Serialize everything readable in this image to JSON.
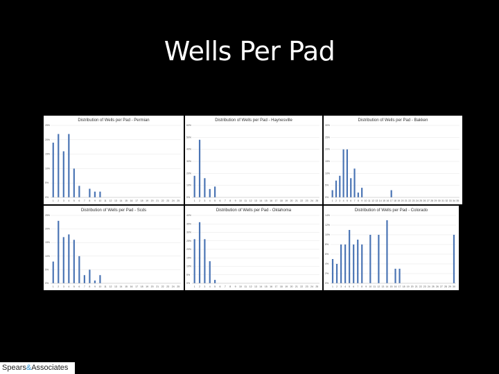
{
  "page": {
    "title": "Wells Per Pad"
  },
  "logo": {
    "part1": "Spears",
    "amp": "&",
    "part2": "Associates"
  },
  "chart_data": [
    {
      "type": "bar",
      "title": "Distribution of Wells per Pad - Permian",
      "categories": [
        "1",
        "2",
        "3",
        "4",
        "5",
        "6",
        "7",
        "8",
        "9",
        "10",
        "11",
        "12",
        "13",
        "14",
        "15",
        "16",
        "17",
        "18",
        "19",
        "20",
        "21",
        "22",
        "23",
        "24",
        "25"
      ],
      "values": [
        19,
        22,
        16,
        22,
        10,
        4,
        0,
        3,
        2,
        2,
        0,
        0,
        0,
        0,
        0,
        0,
        0,
        0,
        0,
        0,
        0,
        0,
        0,
        0,
        0
      ],
      "yticks": [
        "0%",
        "5%",
        "10%",
        "15%",
        "20%",
        "25%"
      ],
      "ylim": [
        0,
        25
      ]
    },
    {
      "type": "bar",
      "title": "Distribution of Wells per Pad - Haynesville",
      "categories": [
        "1",
        "2",
        "3",
        "4",
        "5",
        "6",
        "7",
        "8",
        "9",
        "10",
        "11",
        "12",
        "13",
        "14",
        "15",
        "16",
        "17",
        "18",
        "19",
        "20",
        "21",
        "22",
        "23",
        "24",
        "25"
      ],
      "values": [
        18,
        48,
        16,
        7,
        9,
        0,
        0,
        0,
        0,
        0,
        0,
        0,
        0,
        0,
        0,
        0,
        0,
        0,
        0,
        0,
        0,
        0,
        0,
        0,
        0
      ],
      "yticks": [
        "0%",
        "10%",
        "20%",
        "30%",
        "40%",
        "50%",
        "60%"
      ],
      "ylim": [
        0,
        60
      ]
    },
    {
      "type": "bar",
      "title": "Distribution of Wells per Pad - Bakken",
      "categories": [
        "1",
        "2",
        "3",
        "4",
        "5",
        "6",
        "7",
        "8",
        "9",
        "10",
        "11",
        "12",
        "13",
        "14",
        "15",
        "16",
        "17",
        "18",
        "19",
        "20",
        "21",
        "22",
        "23",
        "24",
        "25",
        "26",
        "27",
        "28",
        "29",
        "30",
        "31",
        "32",
        "33",
        "34",
        "35"
      ],
      "values": [
        3,
        7,
        9,
        20,
        20,
        8,
        12,
        2,
        4,
        0,
        0,
        0,
        0,
        0,
        0,
        0,
        3,
        0,
        0,
        0,
        0,
        0,
        0,
        0,
        0,
        0,
        0,
        0,
        0,
        0,
        0,
        0,
        0,
        0,
        0
      ],
      "yticks": [
        "0%",
        "5%",
        "10%",
        "15%",
        "20%",
        "25%",
        "30%"
      ],
      "ylim": [
        0,
        30
      ]
    },
    {
      "type": "bar",
      "title": "Distribution of Wells per Pad - Scds",
      "categories": [
        "1",
        "2",
        "3",
        "4",
        "5",
        "6",
        "7",
        "8",
        "9",
        "10",
        "11",
        "12",
        "13",
        "14",
        "15",
        "16",
        "17",
        "18",
        "19",
        "20",
        "21",
        "22",
        "23",
        "24",
        "25"
      ],
      "values": [
        8,
        23,
        17,
        18,
        16,
        10,
        3,
        5,
        1,
        3,
        0,
        0,
        0,
        0,
        0,
        0,
        0,
        0,
        0,
        0,
        0,
        0,
        0,
        0,
        0
      ],
      "yticks": [
        "0%",
        "5%",
        "10%",
        "15%",
        "20%",
        "25%"
      ],
      "ylim": [
        0,
        25
      ]
    },
    {
      "type": "bar",
      "title": "Distribution of Wells per Pad - Oklahoma",
      "categories": [
        "1",
        "2",
        "3",
        "4",
        "5",
        "6",
        "7",
        "8",
        "9",
        "10",
        "11",
        "12",
        "13",
        "14",
        "15",
        "16",
        "17",
        "18",
        "19",
        "20",
        "21",
        "22",
        "23",
        "24",
        "25"
      ],
      "values": [
        26,
        36,
        26,
        13,
        2,
        0,
        0,
        0,
        0,
        0,
        0,
        0,
        0,
        0,
        0,
        0,
        0,
        0,
        0,
        0,
        0,
        0,
        0,
        0,
        0
      ],
      "yticks": [
        "0%",
        "5%",
        "10%",
        "15%",
        "20%",
        "25%",
        "30%",
        "35%",
        "40%"
      ],
      "ylim": [
        0,
        40
      ]
    },
    {
      "type": "bar",
      "title": "Distribution of Wells per Pad - Colorado",
      "categories": [
        "1",
        "2",
        "3",
        "4",
        "5",
        "6",
        "7",
        "8",
        "9",
        "10",
        "11",
        "12",
        "13",
        "14",
        "15",
        "16",
        "17",
        "18",
        "19",
        "20",
        "21",
        "22",
        "23",
        "24",
        "25",
        "26",
        "27",
        "28",
        "29",
        "30"
      ],
      "values": [
        5,
        4,
        8,
        8,
        11,
        8,
        9,
        8,
        0,
        10,
        0,
        10,
        0,
        13,
        0,
        3,
        3,
        0,
        0,
        0,
        0,
        0,
        0,
        0,
        0,
        0,
        0,
        0,
        0,
        10
      ],
      "yticks": [
        "0%",
        "2%",
        "4%",
        "6%",
        "8%",
        "10%",
        "12%",
        "14%"
      ],
      "ylim": [
        0,
        14
      ]
    }
  ]
}
